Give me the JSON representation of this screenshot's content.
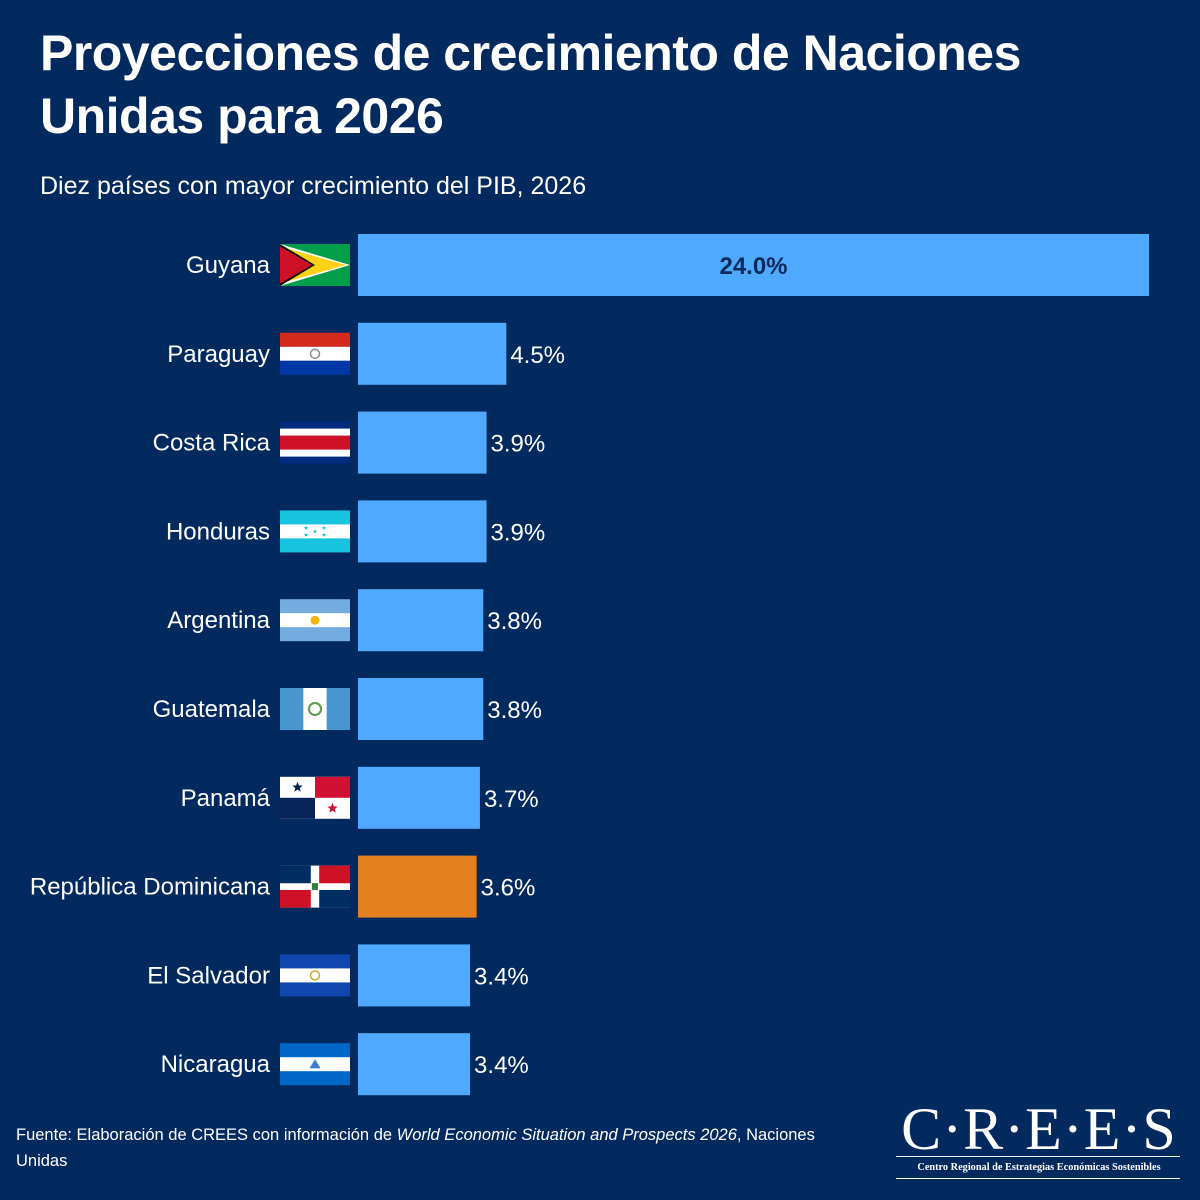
{
  "header": {
    "title": "Proyecciones de crecimiento de Naciones Unidas para 2026",
    "subtitle": "Diez países con mayor crecimiento del PIB, 2026"
  },
  "chart_data": {
    "type": "bar",
    "orientation": "horizontal",
    "title": "Proyecciones de crecimiento de Naciones Unidas para 2026",
    "subtitle": "Diez países con mayor crecimiento del PIB, 2026",
    "categories": [
      "Guyana",
      "Paraguay",
      "Costa Rica",
      "Honduras",
      "Argentina",
      "Guatemala",
      "Panamá",
      "República Dominicana",
      "El Salvador",
      "Nicaragua"
    ],
    "values": [
      24.0,
      4.5,
      3.9,
      3.9,
      3.8,
      3.8,
      3.7,
      3.6,
      3.4,
      3.4
    ],
    "value_labels": [
      "24.0%",
      "4.5%",
      "3.9%",
      "3.9%",
      "3.8%",
      "3.8%",
      "3.7%",
      "3.6%",
      "3.4%",
      "3.4%"
    ],
    "highlight": "República Dominicana",
    "xlim": [
      0,
      24
    ],
    "xlabel": "",
    "ylabel": "",
    "grid": false,
    "colors": {
      "bar": "#4faaff",
      "highlight": "#e5801f",
      "background": "#032a5e",
      "label_inside": "#0a2a5a",
      "label_outside": "#ffffff"
    },
    "flags": [
      "guyana-flag-icon",
      "paraguay-flag-icon",
      "costa-rica-flag-icon",
      "honduras-flag-icon",
      "argentina-flag-icon",
      "guatemala-flag-icon",
      "panama-flag-icon",
      "dominican-republic-flag-icon",
      "el-salvador-flag-icon",
      "nicaragua-flag-icon"
    ]
  },
  "footer": {
    "source_prefix": "Fuente: Elaboración de CREES con información de ",
    "source_title": "World Economic Situation and Prospects 2026",
    "source_suffix": ", Naciones Unidas"
  },
  "logo": {
    "wordmark": "C·R·E·E·S",
    "tagline": "Centro Regional de Estrategias Económicas Sostenibles"
  }
}
